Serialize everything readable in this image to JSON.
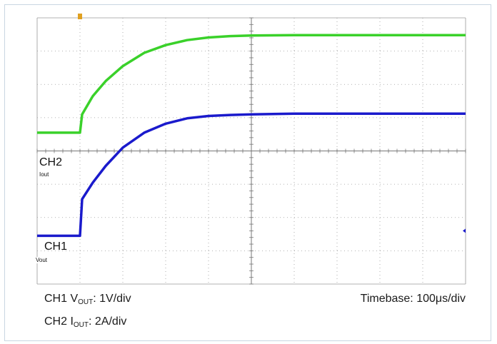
{
  "caption": {
    "ch1_prefix": "CH1 V",
    "ch1_sub": "OUT",
    "ch1_scale": ": 1V/div",
    "ch2_prefix": "CH2 I",
    "ch2_sub": "OUT",
    "ch2_scale": ": 2A/div",
    "timebase": "Timebase: 100μs/div"
  },
  "channels": {
    "ch2": {
      "label": "CH2",
      "tag": "Iout"
    },
    "ch1": {
      "label": "CH1",
      "tag": "Vout"
    }
  },
  "colors": {
    "ch1": "#1a1acc",
    "ch2": "#3ad12a",
    "grid": "#9a9a9a",
    "trigger": "#e0a020"
  },
  "chart_data": {
    "type": "line",
    "grid": true,
    "divisions": {
      "x": 10,
      "y": 8
    },
    "xunits": "div (100μs/div)",
    "yunits": "div",
    "xlim": [
      0,
      10
    ],
    "ylim": [
      0,
      8
    ],
    "series": [
      {
        "name": "CH2",
        "x": [
          0,
          1.0,
          1.05,
          1.3,
          1.6,
          2.0,
          2.5,
          3.0,
          3.5,
          4.0,
          4.5,
          5.0,
          6.0,
          7.0,
          8.0,
          9.0,
          10.0
        ],
        "y": [
          4.55,
          4.55,
          5.1,
          5.65,
          6.1,
          6.55,
          6.95,
          7.18,
          7.33,
          7.41,
          7.45,
          7.47,
          7.48,
          7.48,
          7.48,
          7.48,
          7.48
        ]
      },
      {
        "name": "CH1",
        "x": [
          0,
          1.0,
          1.05,
          1.3,
          1.6,
          2.0,
          2.5,
          3.0,
          3.5,
          4.0,
          4.5,
          5.0,
          6.0,
          7.0,
          8.0,
          9.0,
          10.0
        ],
        "y": [
          1.45,
          1.45,
          2.55,
          3.05,
          3.55,
          4.1,
          4.55,
          4.82,
          4.98,
          5.05,
          5.08,
          5.1,
          5.12,
          5.12,
          5.12,
          5.12,
          5.12
        ]
      }
    ]
  }
}
